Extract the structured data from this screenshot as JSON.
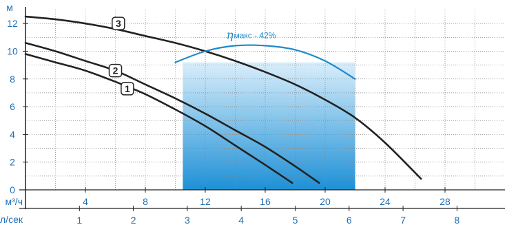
{
  "chart_data": {
    "type": "line",
    "title": "",
    "y_axis": {
      "unit": "м",
      "ticks": [
        0,
        2,
        4,
        6,
        8,
        10,
        12
      ],
      "range": [
        0,
        13
      ]
    },
    "x_axis_primary": {
      "unit": "м³/ч",
      "ticks": [
        4,
        8,
        12,
        16,
        20,
        24,
        28
      ],
      "range": [
        0,
        32
      ]
    },
    "x_axis_secondary": {
      "unit": "л/сек",
      "ticks": [
        1,
        2,
        3,
        4,
        5,
        6,
        7,
        8
      ],
      "factor_m3h_per_unit": 3.6
    },
    "grid": "dotted",
    "operating_region": {
      "x_range": [
        10.5,
        22
      ],
      "color_top": "#d9eefb",
      "color_bottom": "#1e90d6"
    },
    "series": [
      {
        "name": "1",
        "x": [
          0,
          2,
          4,
          6,
          8,
          10,
          12,
          14,
          16,
          17.8
        ],
        "y": [
          9.8,
          9.2,
          8.6,
          7.8,
          6.9,
          5.8,
          4.6,
          3.2,
          1.8,
          0.5
        ]
      },
      {
        "name": "2",
        "x": [
          0,
          2,
          4,
          6,
          8,
          10,
          12,
          14,
          16,
          18,
          19.6
        ],
        "y": [
          10.6,
          10.0,
          9.3,
          8.6,
          7.6,
          6.6,
          5.5,
          4.3,
          3.1,
          1.7,
          0.5
        ]
      },
      {
        "name": "3",
        "x": [
          0,
          2,
          4,
          6,
          8,
          10,
          12,
          14,
          16,
          18,
          20,
          22,
          24,
          26.4
        ],
        "y": [
          12.5,
          12.3,
          12.0,
          11.6,
          11.1,
          10.6,
          10.0,
          9.3,
          8.5,
          7.6,
          6.5,
          5.2,
          3.4,
          0.8
        ]
      }
    ],
    "efficiency_curve": {
      "label": "макс - 42%",
      "symbol": "η",
      "x": [
        10,
        12,
        14,
        16,
        18,
        20,
        22
      ],
      "y": [
        9.2,
        10.0,
        10.4,
        10.4,
        10.1,
        9.3,
        8.0
      ],
      "color": "#1f8ac9"
    },
    "label_markers": [
      {
        "text": "1",
        "x": 6.8,
        "y": 7.3
      },
      {
        "text": "2",
        "x": 6.0,
        "y": 8.6
      },
      {
        "text": "3",
        "x": 6.2,
        "y": 12.0
      }
    ],
    "colors": {
      "axis": "#1f6fb5",
      "curve": "#222222",
      "grid": "#888888"
    }
  }
}
